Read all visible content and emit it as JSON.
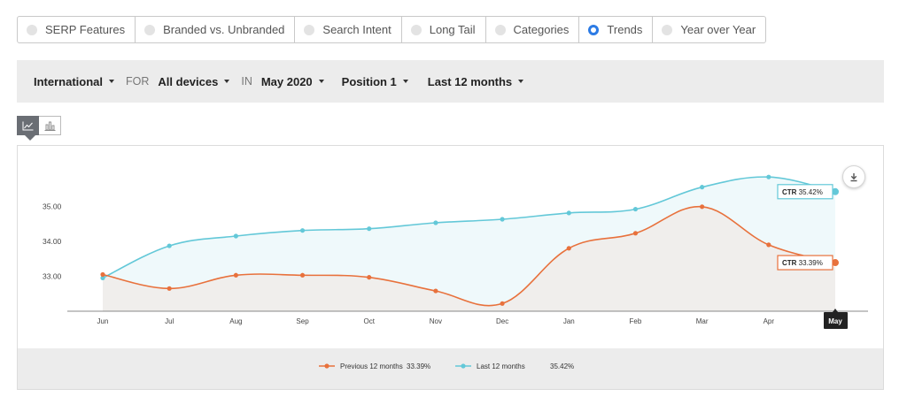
{
  "tabs": [
    {
      "label": "SERP Features",
      "active": false
    },
    {
      "label": "Branded vs. Unbranded",
      "active": false
    },
    {
      "label": "Search Intent",
      "active": false
    },
    {
      "label": "Long Tail",
      "active": false
    },
    {
      "label": "Categories",
      "active": false
    },
    {
      "label": "Trends",
      "active": true
    },
    {
      "label": "Year over Year",
      "active": false
    }
  ],
  "filters": {
    "region": "International",
    "for_word": "FOR",
    "devices": "All devices",
    "in_word": "IN",
    "month": "May 2020",
    "position": "Position 1",
    "range": "Last 12 months"
  },
  "chart_data": {
    "type": "line",
    "categories": [
      "Jun",
      "Jul",
      "Aug",
      "Sep",
      "Oct",
      "Nov",
      "Dec",
      "Jan",
      "Feb",
      "Mar",
      "Apr",
      "May"
    ],
    "yticks": [
      "33.00",
      "34.00",
      "35.00"
    ],
    "ylim": [
      32.0,
      36.3
    ],
    "grid": false,
    "highlighted_category": "May",
    "series": [
      {
        "name": "Previous 12 months",
        "color": "#e8713c",
        "fill": "#f0eeec",
        "values": [
          33.05,
          32.65,
          33.03,
          33.03,
          32.97,
          32.58,
          32.22,
          33.8,
          34.23,
          34.99,
          33.9,
          33.39
        ],
        "tooltip_label": "CTR",
        "tooltip_value": "33.39%",
        "legend_value": "33.39%"
      },
      {
        "name": "Last 12 months",
        "color": "#63c8d8",
        "fill": "#eff9fb",
        "values": [
          32.95,
          33.87,
          34.15,
          34.31,
          34.36,
          34.53,
          34.63,
          34.81,
          34.92,
          35.55,
          35.84,
          35.42
        ],
        "tooltip_label": "CTR",
        "tooltip_value": "35.42%",
        "legend_value": "35.42%"
      }
    ]
  }
}
